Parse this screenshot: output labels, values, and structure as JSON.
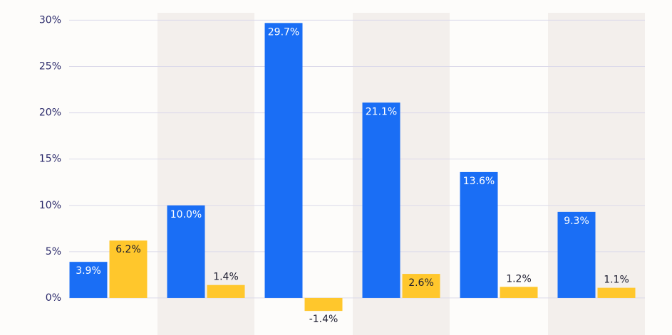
{
  "chart_data": {
    "type": "bar",
    "categories": [
      null,
      null,
      null,
      null,
      null,
      null
    ],
    "series": [
      {
        "color": "#1a6ef5",
        "values": [
          3.9,
          10.0,
          29.7,
          21.1,
          13.6,
          9.3
        ],
        "value_labels": [
          "3.9%",
          "10.0%",
          "29.7%",
          "21.1%",
          "13.6%",
          "9.3%"
        ]
      },
      {
        "color": "#ffc72c",
        "values": [
          6.2,
          1.4,
          -1.4,
          2.6,
          1.2,
          1.1
        ],
        "value_labels": [
          "6.2%",
          "1.4%",
          "-1.4%",
          "2.6%",
          "1.2%",
          "1.1%"
        ]
      }
    ],
    "ylim": [
      -4,
      30.8
    ],
    "yticks": [
      {
        "value": 0,
        "label": "0%"
      },
      {
        "value": 5,
        "label": "5%"
      },
      {
        "value": 10,
        "label": "10%"
      },
      {
        "value": 15,
        "label": "15%"
      },
      {
        "value": 20,
        "label": "20%"
      },
      {
        "value": 25,
        "label": "25%"
      },
      {
        "value": 30,
        "label": "30%"
      }
    ],
    "grid": true
  }
}
